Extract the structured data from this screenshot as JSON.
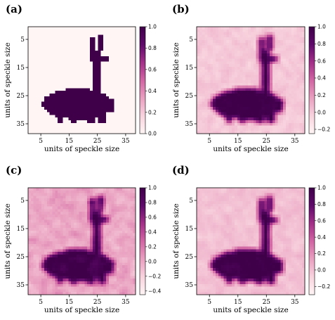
{
  "chart_data": [
    {
      "panel": "(a)",
      "type": "heatmap",
      "image": "ground-truth llama silhouette (binary object, values 0 and 1)",
      "xlabel": "units of speckle size",
      "ylabel": "units of speckle size",
      "xticks": [
        "5",
        "15",
        "25",
        "35"
      ],
      "yticks": [
        "5",
        "15",
        "25",
        "35"
      ],
      "colorbar": {
        "ticks": [
          "0.0",
          "0.2",
          "0.4",
          "0.6",
          "0.8",
          "1.0"
        ],
        "min": 0.0,
        "max": 1.0
      },
      "colormap": [
        "#fff5f5",
        "#f8d3de",
        "#e9a0c0",
        "#d165a3",
        "#a32f88",
        "#5f0a6b",
        "#3f0049"
      ],
      "noise": 0
    },
    {
      "panel": "(b)",
      "type": "heatmap",
      "image": "reconstructed llama silhouette",
      "xlabel": "units of speckle size",
      "ylabel": "units of speckle size",
      "xticks": [
        "5",
        "15",
        "25",
        "35"
      ],
      "yticks": [
        "5",
        "15",
        "25",
        "35"
      ],
      "colorbar": {
        "ticks": [
          "−0.2",
          "0.0",
          "0.2",
          "0.4",
          "0.6",
          "0.8",
          "1.0"
        ],
        "min": -0.25,
        "max": 1.0
      },
      "colormap": [
        "#fff5f5",
        "#f8d3de",
        "#e9a0c0",
        "#d165a3",
        "#a32f88",
        "#5f0a6b",
        "#3f0049"
      ],
      "noise": 0.12
    },
    {
      "panel": "(c)",
      "type": "heatmap",
      "image": "reconstructed llama silhouette (noisier)",
      "xlabel": "units of speckle size",
      "ylabel": "units of speckle size",
      "xticks": [
        "5",
        "15",
        "25",
        "35"
      ],
      "yticks": [
        "5",
        "15",
        "25",
        "35"
      ],
      "colorbar": {
        "ticks": [
          "−0.4",
          "−0.2",
          "0.0",
          "0.2",
          "0.4",
          "0.6",
          "0.8",
          "1.0"
        ],
        "min": -0.45,
        "max": 1.0
      },
      "colormap": [
        "#fff5f5",
        "#f8d3de",
        "#e9a0c0",
        "#d165a3",
        "#a32f88",
        "#5f0a6b",
        "#3f0049"
      ],
      "noise": 0.22
    },
    {
      "panel": "(d)",
      "type": "heatmap",
      "image": "reconstructed llama silhouette",
      "xlabel": "units of speckle size",
      "ylabel": "units of speckle size",
      "xticks": [
        "5",
        "15",
        "25",
        "35"
      ],
      "yticks": [
        "5",
        "15",
        "25",
        "35"
      ],
      "colorbar": {
        "ticks": [
          "−0.2",
          "0.0",
          "0.2",
          "0.4",
          "0.6",
          "0.8",
          "1.0"
        ],
        "min": -0.3,
        "max": 1.0
      },
      "colormap": [
        "#fff5f5",
        "#f8d3de",
        "#e9a0c0",
        "#d165a3",
        "#a32f88",
        "#5f0a6b",
        "#3f0049"
      ],
      "noise": 0.12
    }
  ]
}
